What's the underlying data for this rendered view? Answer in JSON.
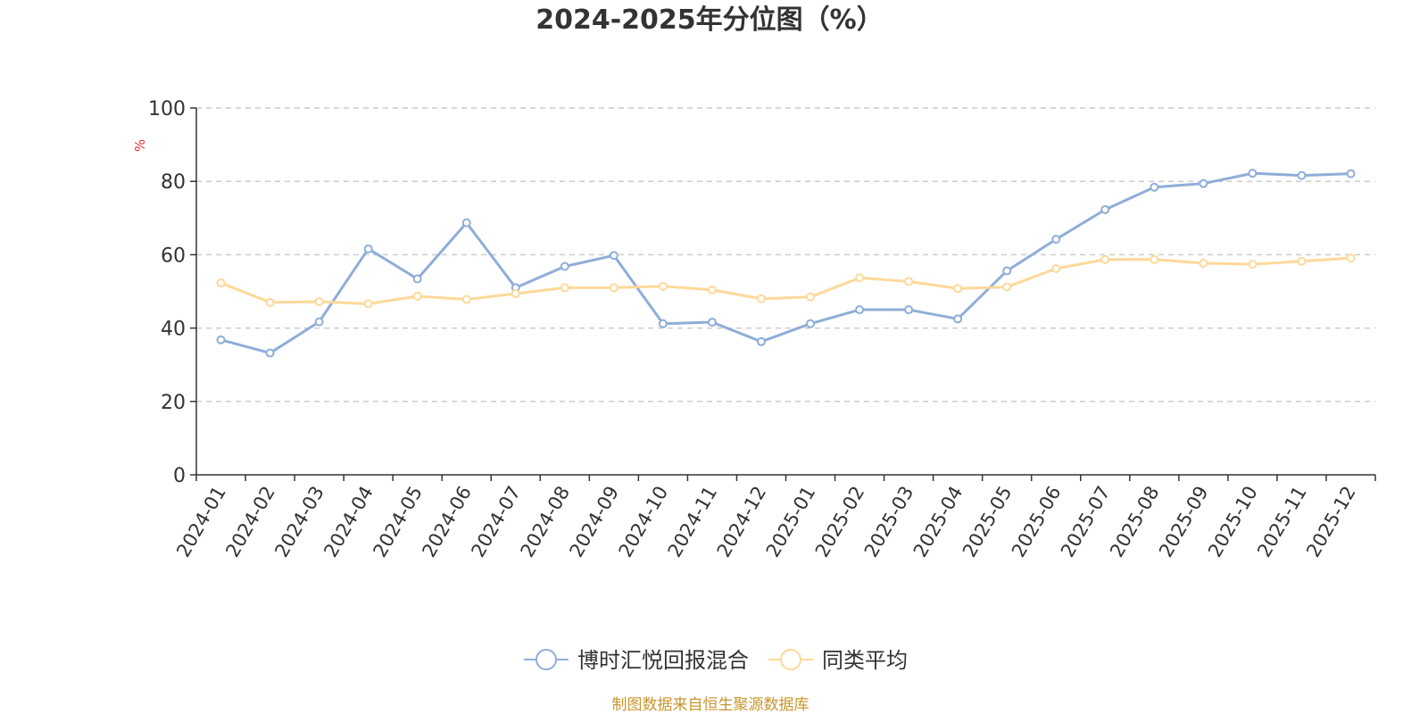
{
  "chart_data": {
    "type": "line",
    "title": "2024-2025年分位图（%）",
    "yunit": "%",
    "ylim": [
      0,
      100
    ],
    "yticks": [
      0,
      20,
      40,
      60,
      80,
      100
    ],
    "grid": true,
    "legend_position": "bottom-center",
    "categories": [
      "2024-01",
      "2024-02",
      "2024-03",
      "2024-04",
      "2024-05",
      "2024-06",
      "2024-07",
      "2024-08",
      "2024-09",
      "2024-10",
      "2024-11",
      "2024-12",
      "2025-01",
      "2025-02",
      "2025-03",
      "2025-04",
      "2025-05",
      "2025-06",
      "2025-07",
      "2025-08",
      "2025-09",
      "2025-10",
      "2025-11",
      "2025-12"
    ],
    "series": [
      {
        "name": "博时汇悦回报混合",
        "color": "#8fadd9",
        "values": [
          36.8,
          33.2,
          41.7,
          61.6,
          53.4,
          68.7,
          51.0,
          56.8,
          59.8,
          41.2,
          41.6,
          36.3,
          41.2,
          45.0,
          45.0,
          42.5,
          55.6,
          64.2,
          72.3,
          78.4,
          79.4,
          82.2,
          81.6,
          82.1
        ]
      },
      {
        "name": "同类平均",
        "color": "#fdd999",
        "values": [
          52.3,
          47.0,
          47.2,
          46.6,
          48.7,
          47.8,
          49.4,
          51.0,
          51.0,
          51.4,
          50.4,
          48.0,
          48.5,
          53.7,
          52.7,
          50.8,
          51.2,
          56.2,
          58.7,
          58.7,
          57.7,
          57.4,
          58.2,
          59.1
        ]
      }
    ]
  },
  "source_text": "制图数据来自恒生聚源数据库"
}
